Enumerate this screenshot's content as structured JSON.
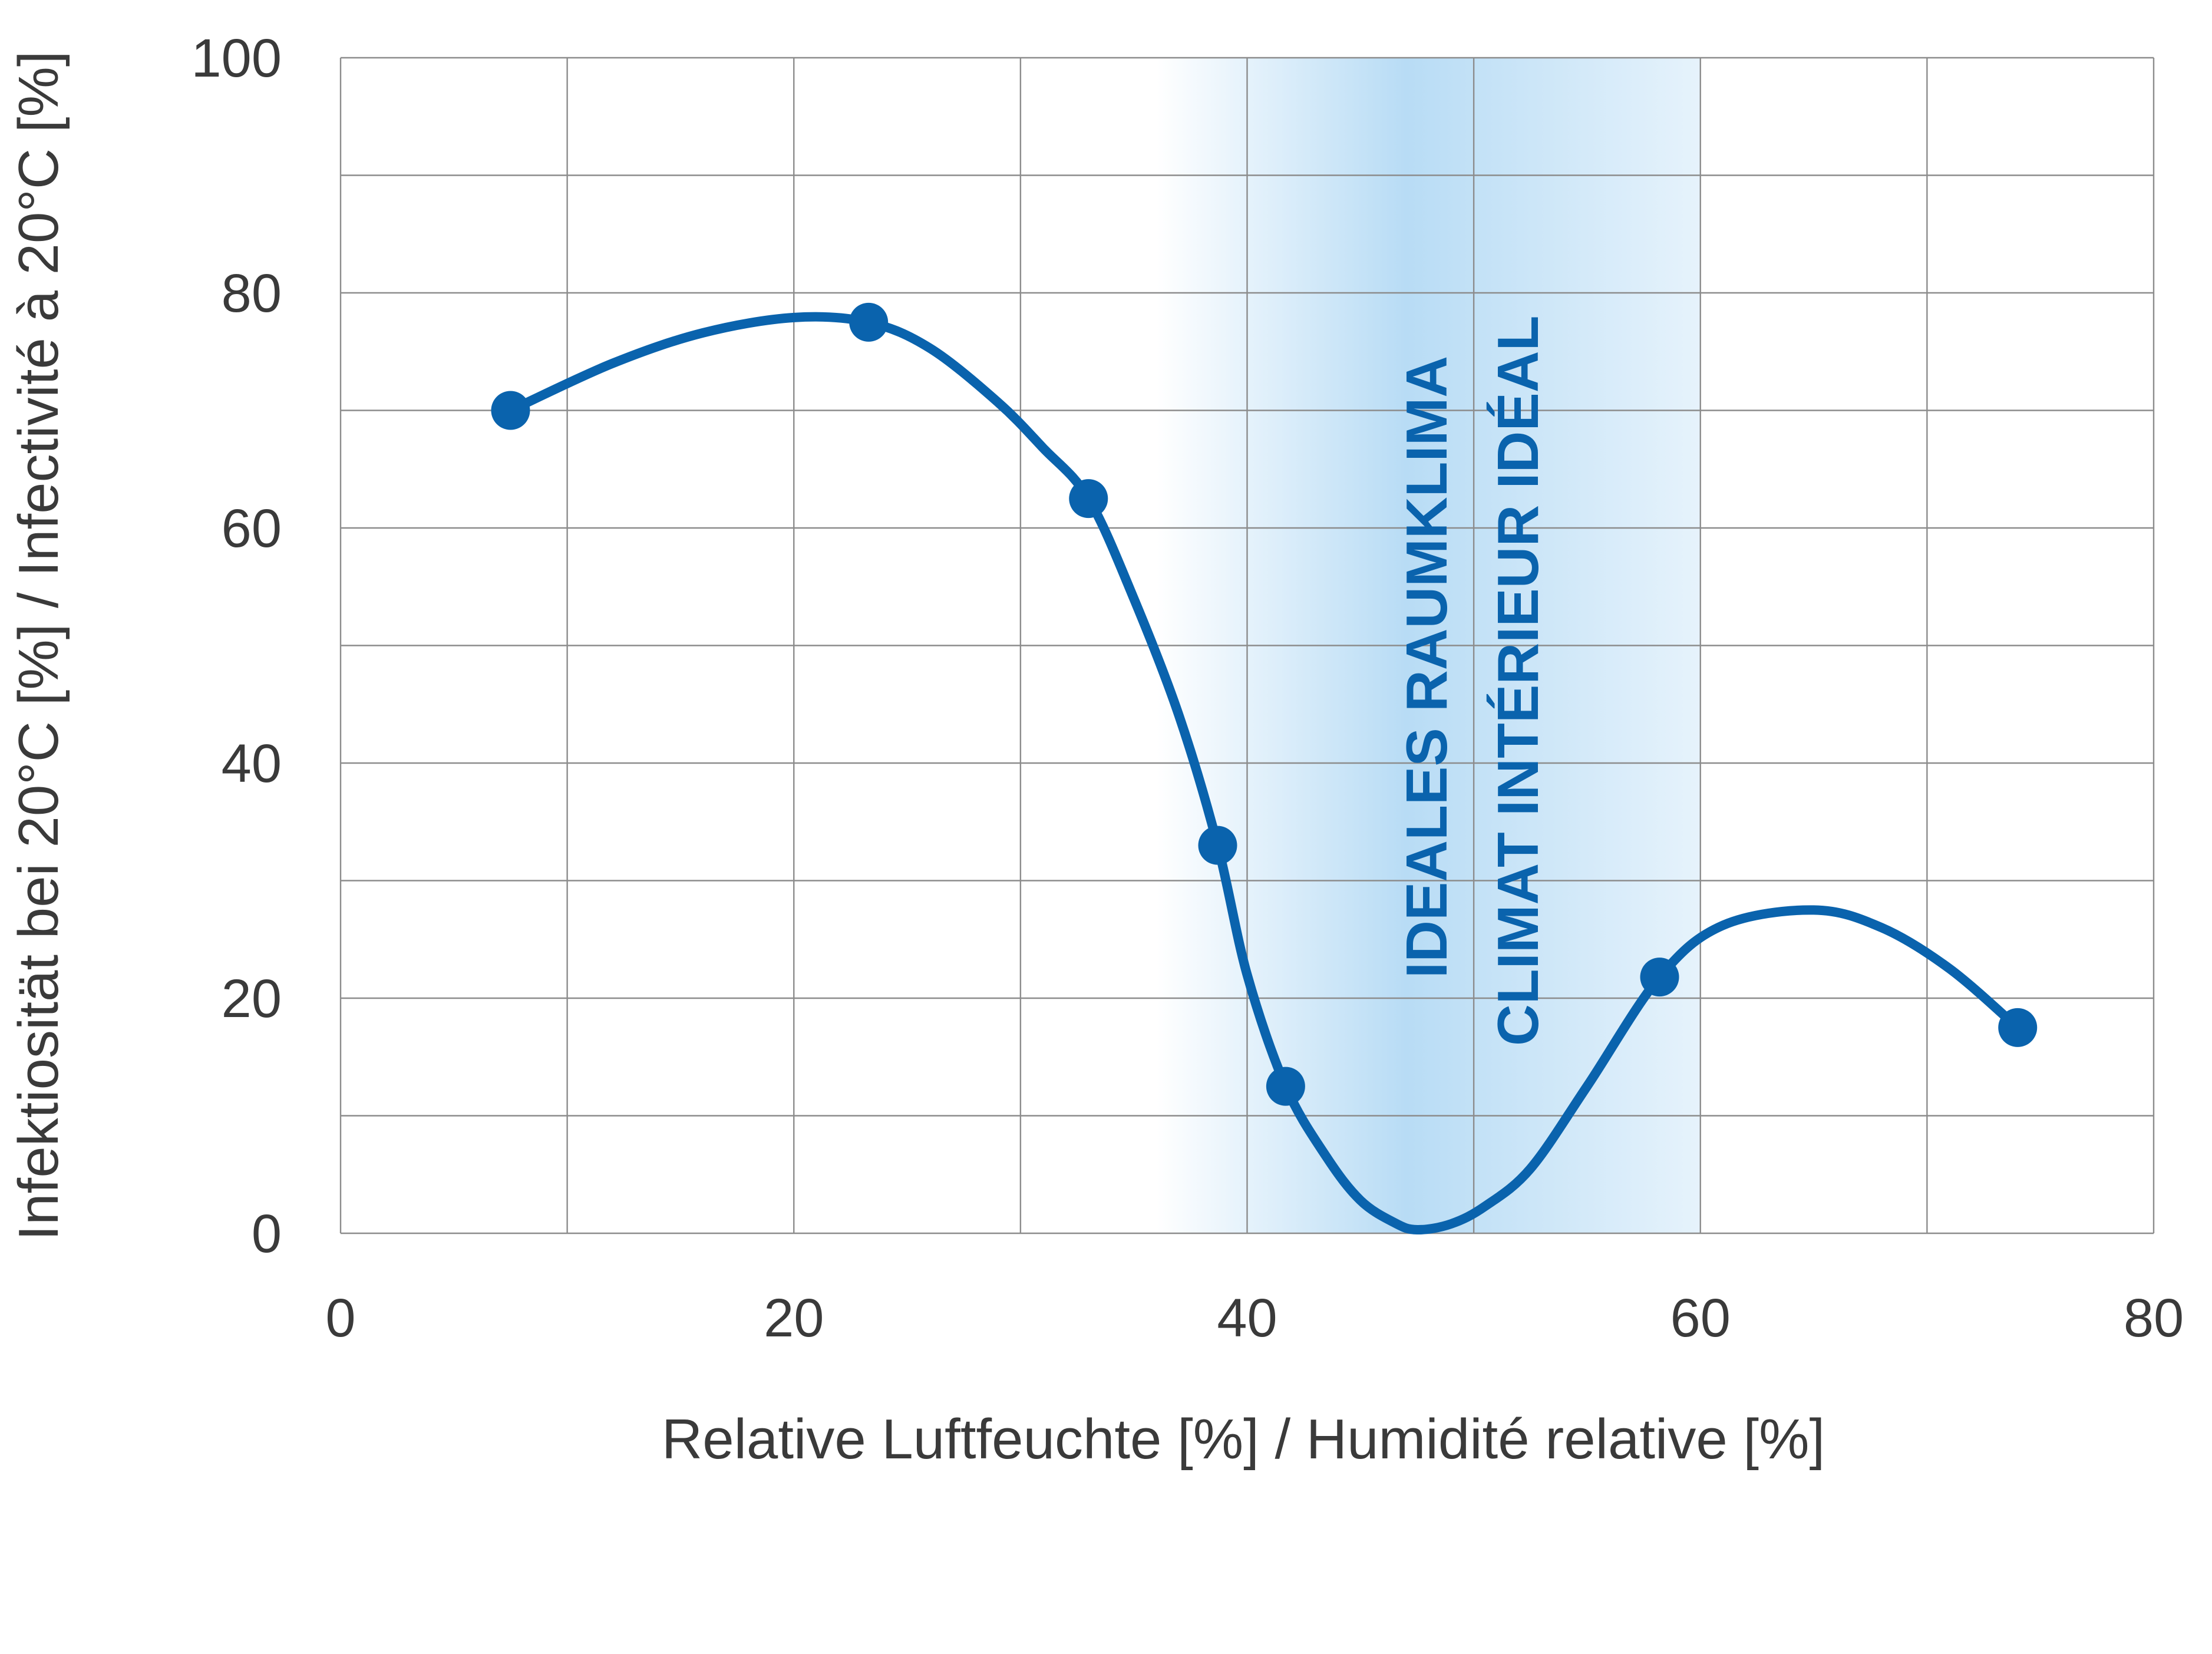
{
  "chart_data": {
    "type": "line",
    "xlabel": "Relative Luftfeuchte [%] / Humidité relative [%]",
    "ylabel": "Infektiosität bei 20°C  [%] / Infectivité à 20°C [%]",
    "xlim": [
      0,
      80
    ],
    "ylim": [
      0,
      100
    ],
    "x_ticks": [
      "0",
      "20",
      "40",
      "60",
      "80"
    ],
    "y_ticks": [
      "0",
      "20",
      "40",
      "60",
      "80",
      "100"
    ],
    "grid": true,
    "series": [
      {
        "x": [
          7.5,
          23.3,
          33,
          38.7,
          41.7,
          58.2,
          74
        ],
        "values": [
          70,
          77.5,
          62.5,
          33,
          12.5,
          21.8,
          17.5
        ],
        "color": "#0a63ad"
      }
    ],
    "curve": {
      "x": [
        7.5,
        12,
        16,
        20,
        23.3,
        26,
        29,
        31,
        33,
        35,
        37,
        38.7,
        40,
        41.7,
        43.5,
        45,
        46.5,
        47.5,
        49,
        50.5,
        52.5,
        55,
        58.2,
        61,
        65,
        68,
        71,
        74
      ],
      "y": [
        70,
        74,
        76.6,
        77.9,
        77.5,
        75.3,
        70.7,
        66.8,
        62.5,
        54,
        44,
        33,
        22,
        12.5,
        6.5,
        2.8,
        0.9,
        0.3,
        0.8,
        2.3,
        5.5,
        12.5,
        21.8,
        26.2,
        27.5,
        26,
        22.5,
        17.5
      ]
    },
    "bands": [
      {
        "x_range": [
          36,
          60
        ],
        "peak_x": 47,
        "color": "#b8dcf5",
        "labels": [
          "IDEALES RAUMKLIMA",
          "CLIMAT INTÉRIEUR IDÉAL"
        ]
      }
    ]
  }
}
